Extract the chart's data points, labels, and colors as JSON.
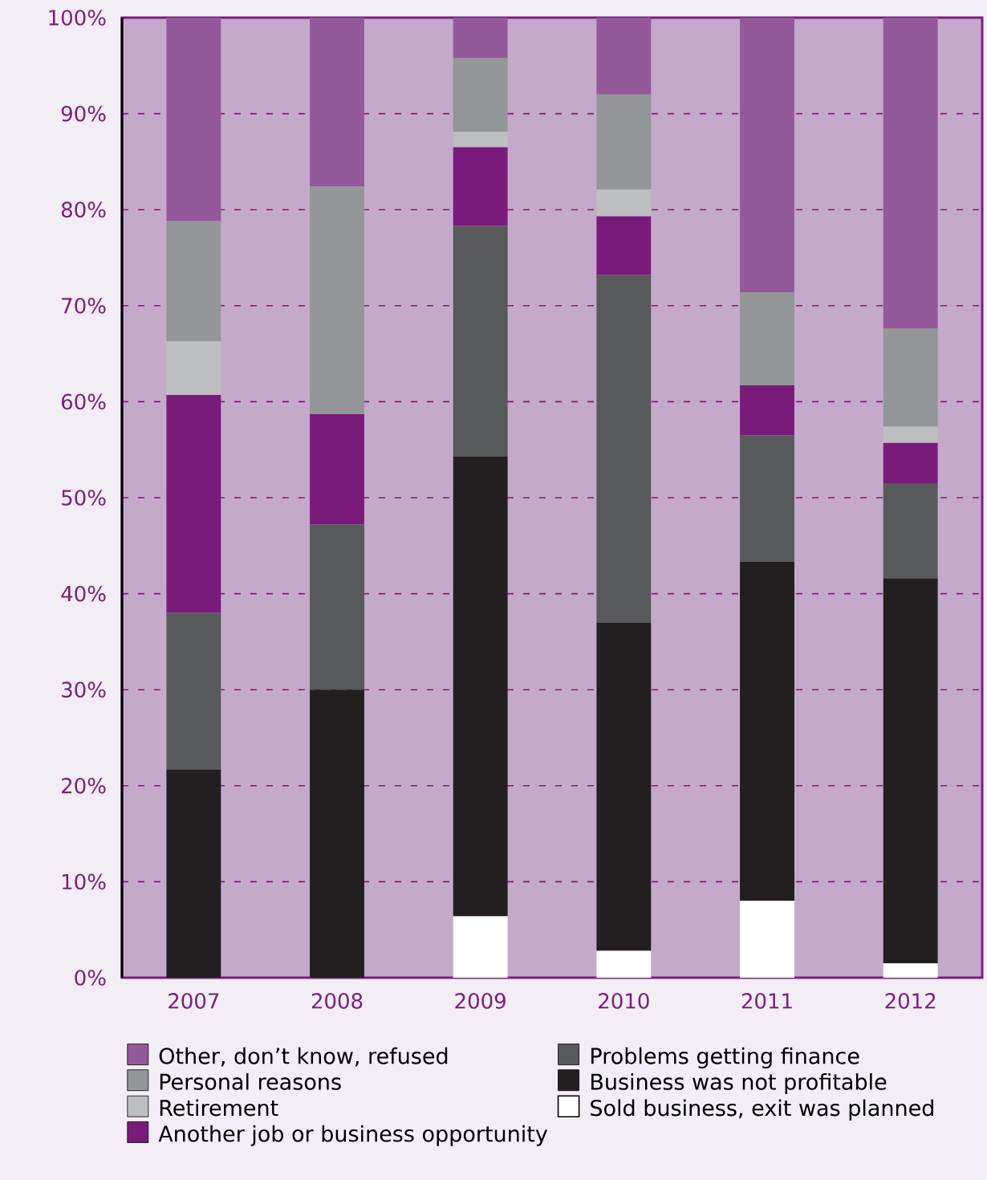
{
  "chart_data": {
    "type": "bar",
    "stacked": true,
    "categories": [
      "2007",
      "2008",
      "2009",
      "2010",
      "2011",
      "2012"
    ],
    "series": [
      {
        "name": "Sold business, exit was planned",
        "color": "#ffffff",
        "values": [
          0,
          0,
          6.4,
          2.8,
          8.0,
          1.5
        ]
      },
      {
        "name": "Business was not profitable",
        "color": "#231f20",
        "values": [
          21.7,
          30.0,
          47.9,
          34.2,
          35.3,
          40.1
        ]
      },
      {
        "name": "Problems getting finance",
        "color": "#58595b",
        "values": [
          16.3,
          17.2,
          24.0,
          36.2,
          13.2,
          9.9
        ]
      },
      {
        "name": "Another job or business opportunity",
        "color": "#7a1b7b",
        "values": [
          22.7,
          11.5,
          8.2,
          6.1,
          5.2,
          4.2
        ]
      },
      {
        "name": "Retirement",
        "color": "#bcbec0",
        "values": [
          5.6,
          0,
          1.6,
          2.8,
          0,
          1.7
        ]
      },
      {
        "name": "Personal reasons",
        "color": "#939598",
        "values": [
          12.5,
          23.7,
          7.7,
          9.9,
          9.7,
          10.2
        ]
      },
      {
        "name": "Other, don’t know, refused",
        "color": "#93599a",
        "values": [
          21.2,
          17.6,
          4.2,
          8.0,
          28.6,
          32.4
        ]
      }
    ],
    "ylim": [
      0,
      100
    ],
    "yticks": [
      {
        "value": 0,
        "label": "0%"
      },
      {
        "value": 10,
        "label": "10%"
      },
      {
        "value": 20,
        "label": "20%"
      },
      {
        "value": 30,
        "label": "30%"
      },
      {
        "value": 40,
        "label": "40%"
      },
      {
        "value": 50,
        "label": "50%"
      },
      {
        "value": 60,
        "label": "60%"
      },
      {
        "value": 70,
        "label": "70%"
      },
      {
        "value": 80,
        "label": "80%"
      },
      {
        "value": 90,
        "label": "90%"
      },
      {
        "value": 100,
        "label": "100%"
      }
    ],
    "grid": "y",
    "legend": "bottom"
  }
}
